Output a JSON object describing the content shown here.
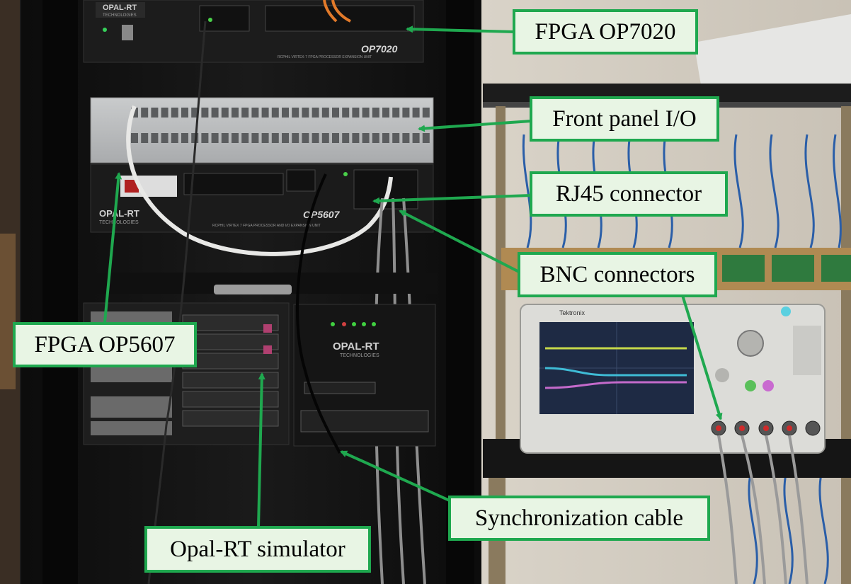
{
  "figure": {
    "labels": {
      "fpga_op7020": "FPGA OP7020",
      "front_panel_io": "Front panel I/O",
      "rj45_connector": "RJ45 connector",
      "bnc_connectors": "BNC connectors",
      "fpga_op5607": "FPGA OP5607",
      "synchronization_cable": "Synchronization cable",
      "opal_rt_simulator": "Opal-RT simulator"
    },
    "device_markings": {
      "brand_top": "OPAL-RT",
      "brand_top_sub": "TECHNOLOGIES",
      "model_top": "OP7020",
      "model_top_desc": "RCPHIL VIRTEX-7 FPGA PROCESSOR EXPANSION UNIT",
      "brand_mid": "OPAL-RT",
      "brand_mid_sub": "TECHNOLOGIES",
      "model_mid": "OP5607",
      "model_mid_desc": "RCPHIL VIRTEX 7 FPGA PROCESSOR AND I/O EXPANSION UNIT",
      "brand_sim": "OPAL-RT",
      "brand_sim_sub": "TECHNOLOGIES",
      "scope_brand": "Tektronix"
    }
  }
}
